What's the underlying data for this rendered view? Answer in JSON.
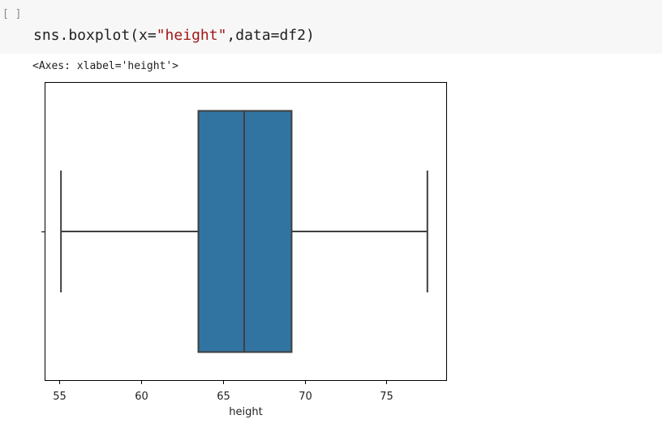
{
  "cell": {
    "run_indicator": "[ ]",
    "code_parts": [
      "sns.boxplot(x=",
      "\"height\"",
      ",data=df2)"
    ],
    "output_text": "<Axes: xlabel='height'>"
  },
  "colors": {
    "box_fill": "#3274a1",
    "line": "#3f3f3f",
    "string_token": "#a31515",
    "cell_bg": "#f7f7f7"
  },
  "chart_data": {
    "type": "box",
    "xlabel": "height",
    "xlim": [
      54.1,
      78.7
    ],
    "xticks": [
      55,
      60,
      65,
      70,
      75
    ],
    "box": {
      "whisker_low": 55.1,
      "q1": 63.5,
      "median": 66.3,
      "q3": 69.2,
      "whisker_high": 77.5
    },
    "grid": false,
    "legend": "none"
  }
}
